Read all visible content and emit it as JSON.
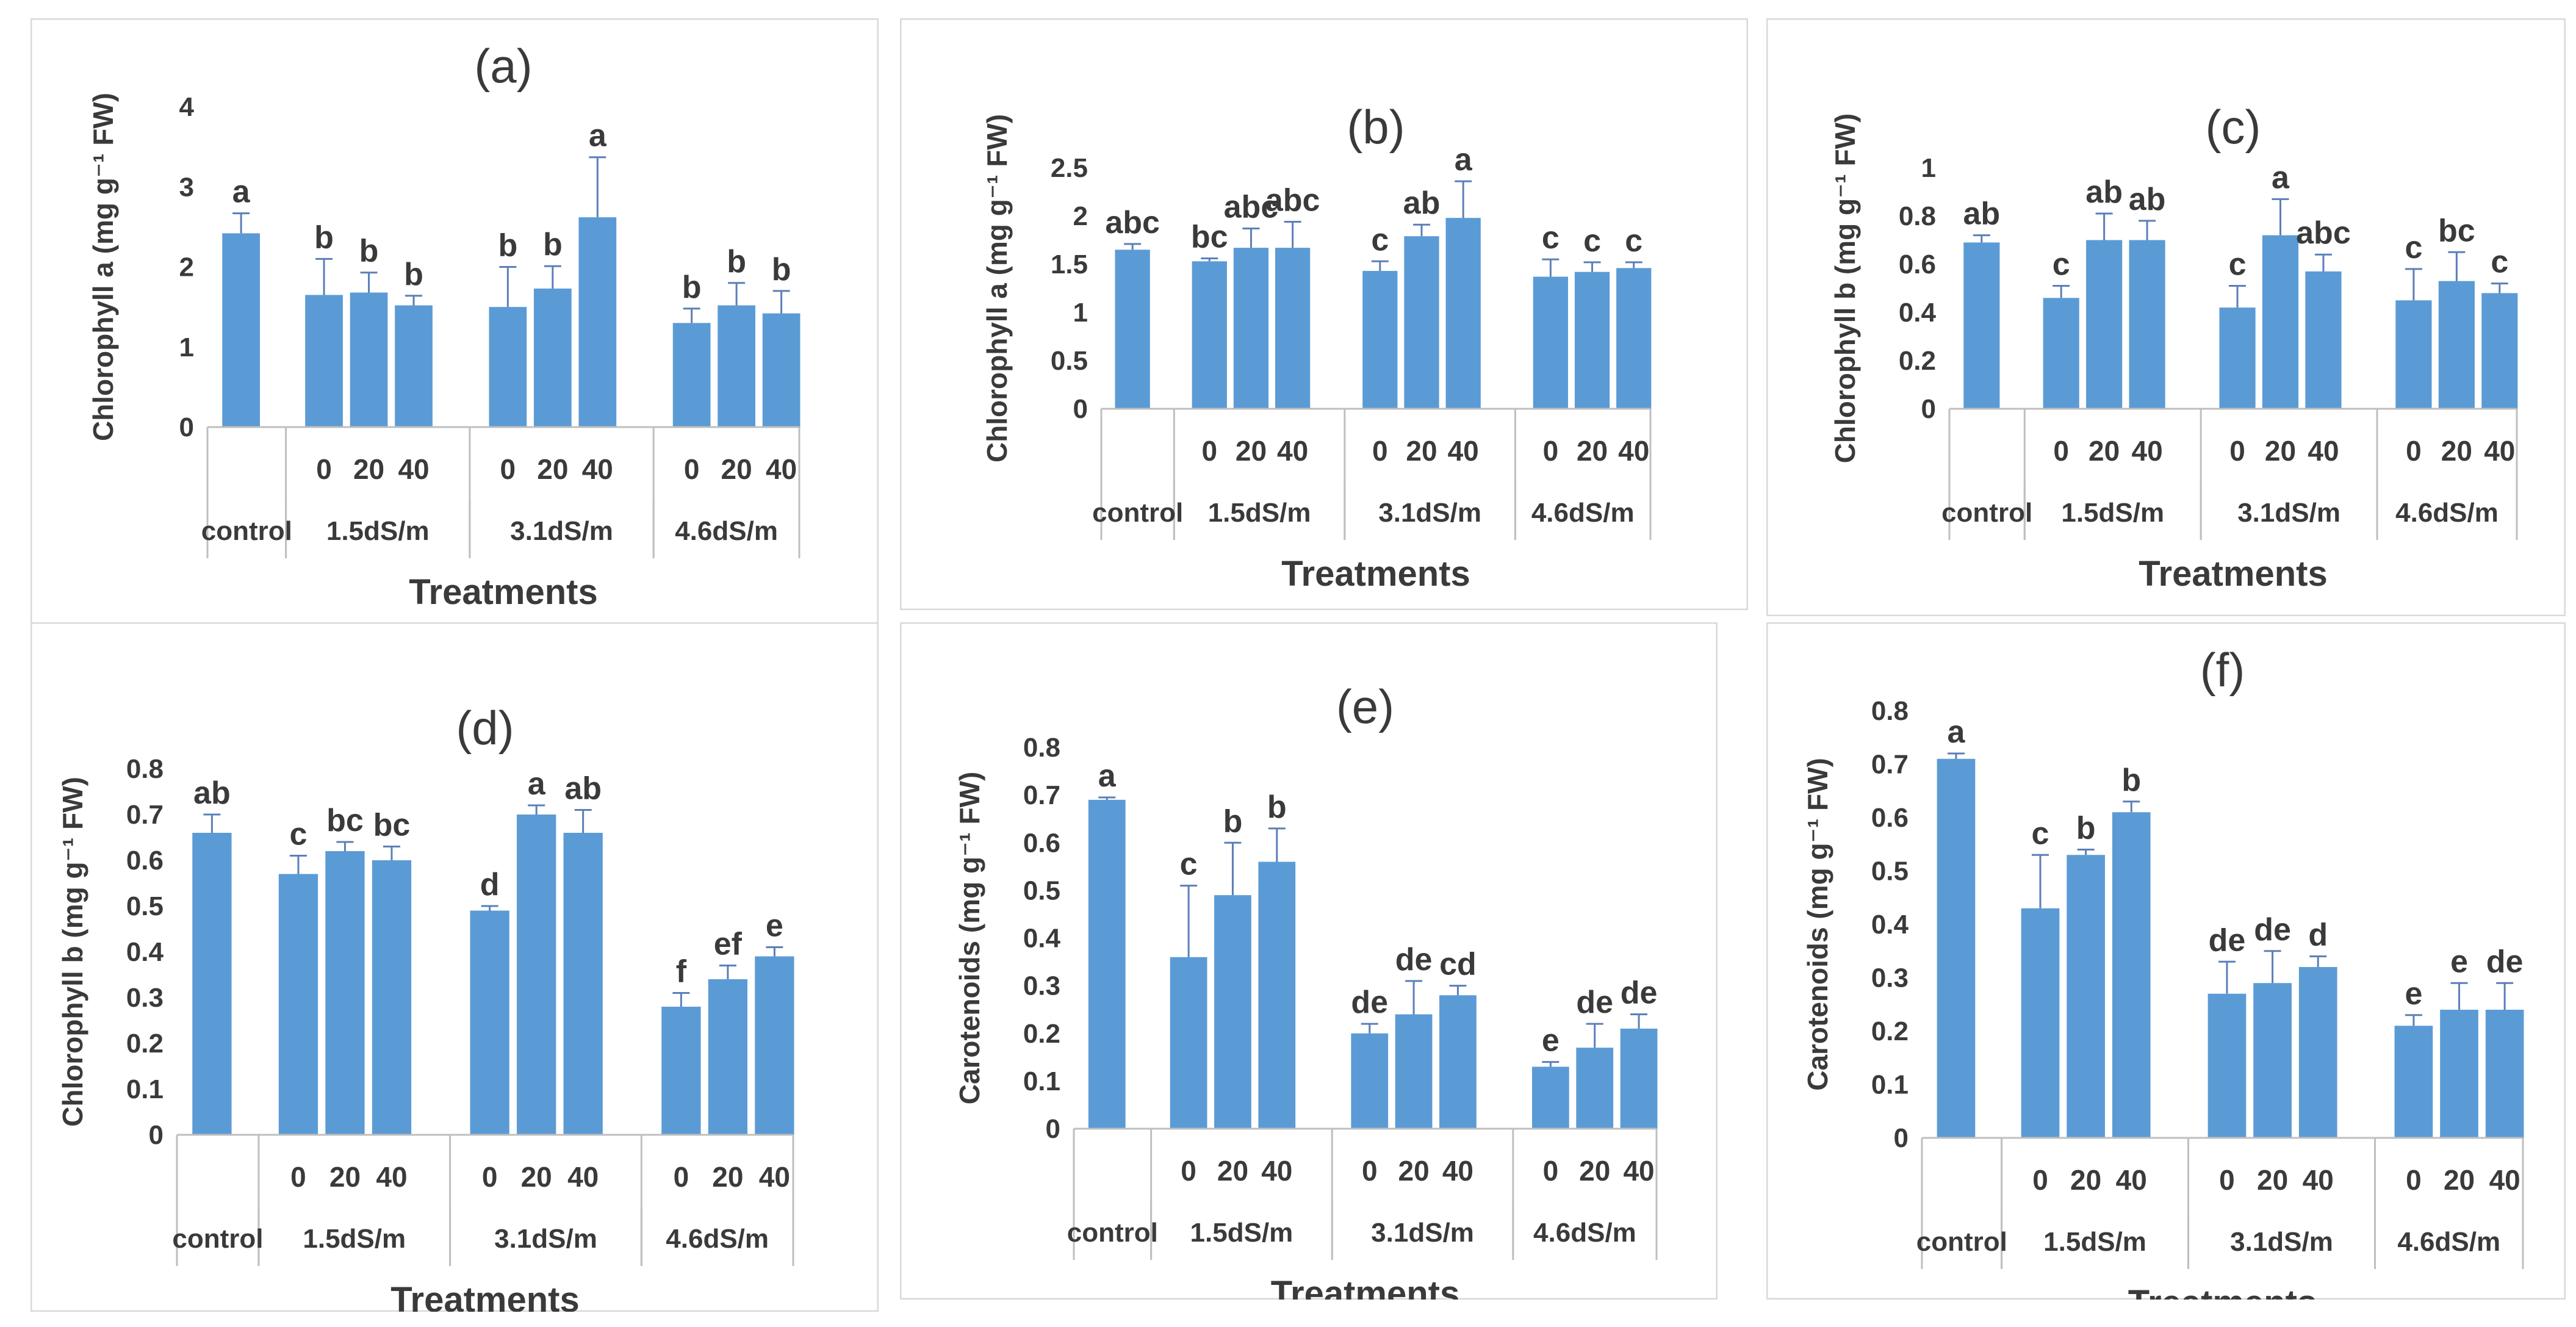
{
  "colors": {
    "bar": "#5b9bd5",
    "text": "#3a3a3a",
    "axis": "#bfbfbf",
    "frame": "#d9d9d9",
    "error": "#5b7fb8"
  },
  "xlabel": "Treatments",
  "group_labels": [
    "control",
    "1.5dS/m",
    "3.1dS/m",
    "4.6dS/m"
  ],
  "sub_labels": [
    "0",
    "20",
    "40"
  ],
  "chart_data": [
    {
      "type": "bar",
      "title": "(a)",
      "ylabel": "Chlorophyll a (mg g⁻¹ FW)",
      "ylim": [
        0,
        4
      ],
      "yticks": [
        0,
        1,
        2,
        3,
        4
      ],
      "xlabel": "Treatments",
      "categories": [
        "control",
        "1.5dS/m 0",
        "1.5dS/m 20",
        "1.5dS/m 40",
        "3.1dS/m 0",
        "3.1dS/m 20",
        "3.1dS/m 40",
        "4.6dS/m 0",
        "4.6dS/m 20",
        "4.6dS/m 40"
      ],
      "values": [
        2.42,
        1.65,
        1.68,
        1.52,
        1.5,
        1.73,
        2.62,
        1.3,
        1.52,
        1.42
      ],
      "errors": [
        0.25,
        0.45,
        0.25,
        0.12,
        0.5,
        0.28,
        0.75,
        0.18,
        0.28,
        0.28
      ],
      "letters": [
        "a",
        "b",
        "b",
        "b",
        "b",
        "b",
        "a",
        "b",
        "b",
        "b"
      ]
    },
    {
      "type": "bar",
      "title": "(b)",
      "ylabel": "Chlorophyll a (mg g⁻¹ FW)",
      "ylim": [
        0,
        2.5
      ],
      "yticks": [
        0,
        0.5,
        1,
        1.5,
        2,
        2.5
      ],
      "xlabel": "Treatments",
      "categories": [
        "control",
        "1.5dS/m 0",
        "1.5dS/m 20",
        "1.5dS/m 40",
        "3.1dS/m 0",
        "3.1dS/m 20",
        "3.1dS/m 40",
        "4.6dS/m 0",
        "4.6dS/m 20",
        "4.6dS/m 40"
      ],
      "values": [
        1.65,
        1.53,
        1.67,
        1.67,
        1.43,
        1.79,
        1.98,
        1.37,
        1.42,
        1.46
      ],
      "errors": [
        0.06,
        0.03,
        0.2,
        0.27,
        0.1,
        0.12,
        0.38,
        0.18,
        0.1,
        0.06
      ],
      "letters": [
        "abc",
        "bc",
        "abc",
        "abc",
        "c",
        "ab",
        "a",
        "c",
        "c",
        "c"
      ]
    },
    {
      "type": "bar",
      "title": "(c)",
      "ylabel": "Chlorophyll b (mg g⁻¹ FW)",
      "ylim": [
        0,
        1
      ],
      "yticks": [
        0,
        0.2,
        0.4,
        0.6,
        0.8,
        1
      ],
      "xlabel": "Treatments",
      "categories": [
        "control",
        "1.5dS/m 0",
        "1.5dS/m 20",
        "1.5dS/m 40",
        "3.1dS/m 0",
        "3.1dS/m 20",
        "3.1dS/m 40",
        "4.6dS/m 0",
        "4.6dS/m 20",
        "4.6dS/m 40"
      ],
      "values": [
        0.69,
        0.46,
        0.7,
        0.7,
        0.42,
        0.72,
        0.57,
        0.45,
        0.53,
        0.48
      ],
      "errors": [
        0.03,
        0.05,
        0.11,
        0.08,
        0.09,
        0.15,
        0.07,
        0.13,
        0.12,
        0.04
      ],
      "letters": [
        "ab",
        "c",
        "ab",
        "ab",
        "c",
        "a",
        "abc",
        "c",
        "bc",
        "c"
      ]
    },
    {
      "type": "bar",
      "title": "(d)",
      "ylabel": "Chlorophyll b (mg g⁻¹ FW)",
      "ylim": [
        0,
        0.8
      ],
      "yticks": [
        0,
        0.1,
        0.2,
        0.3,
        0.4,
        0.5,
        0.6,
        0.7,
        0.8
      ],
      "xlabel": "Treatments",
      "categories": [
        "control",
        "1.5dS/m 0",
        "1.5dS/m 20",
        "1.5dS/m 40",
        "3.1dS/m 0",
        "3.1dS/m 20",
        "3.1dS/m 40",
        "4.6dS/m 0",
        "4.6dS/m 20",
        "4.6dS/m 40"
      ],
      "values": [
        0.66,
        0.57,
        0.62,
        0.6,
        0.49,
        0.7,
        0.66,
        0.28,
        0.34,
        0.39
      ],
      "errors": [
        0.04,
        0.04,
        0.02,
        0.03,
        0.01,
        0.02,
        0.05,
        0.03,
        0.03,
        0.02
      ],
      "letters": [
        "ab",
        "c",
        "bc",
        "bc",
        "d",
        "a",
        "ab",
        "f",
        "ef",
        "e"
      ]
    },
    {
      "type": "bar",
      "title": "(e)",
      "ylabel": "Carotenoids (mg g⁻¹ FW)",
      "ylim": [
        0,
        0.8
      ],
      "yticks": [
        0,
        0.1,
        0.2,
        0.3,
        0.4,
        0.5,
        0.6,
        0.7,
        0.8
      ],
      "xlabel": "Treatments",
      "categories": [
        "control",
        "1.5dS/m 0",
        "1.5dS/m 20",
        "1.5dS/m 40",
        "3.1dS/m 0",
        "3.1dS/m 20",
        "3.1dS/m 40",
        "4.6dS/m 0",
        "4.6dS/m 20",
        "4.6dS/m 40"
      ],
      "values": [
        0.69,
        0.36,
        0.49,
        0.56,
        0.2,
        0.24,
        0.28,
        0.13,
        0.17,
        0.21
      ],
      "errors": [
        0.005,
        0.15,
        0.11,
        0.07,
        0.02,
        0.07,
        0.02,
        0.01,
        0.05,
        0.03
      ],
      "letters": [
        "a",
        "c",
        "b",
        "b",
        "de",
        "de",
        "cd",
        "e",
        "de",
        "de"
      ]
    },
    {
      "type": "bar",
      "title": "(f)",
      "ylabel": "Carotenoids (mg g⁻¹ FW)",
      "ylim": [
        0,
        0.8
      ],
      "yticks": [
        0,
        0.1,
        0.2,
        0.3,
        0.4,
        0.5,
        0.6,
        0.7,
        0.8
      ],
      "xlabel": "Treatments",
      "categories": [
        "control",
        "1.5dS/m 0",
        "1.5dS/m 20",
        "1.5dS/m 40",
        "3.1dS/m 0",
        "3.1dS/m 20",
        "3.1dS/m 40",
        "4.6dS/m 0",
        "4.6dS/m 20",
        "4.6dS/m 40"
      ],
      "values": [
        0.71,
        0.43,
        0.53,
        0.61,
        0.27,
        0.29,
        0.32,
        0.21,
        0.24,
        0.24
      ],
      "errors": [
        0.01,
        0.1,
        0.01,
        0.02,
        0.06,
        0.06,
        0.02,
        0.02,
        0.05,
        0.05
      ],
      "letters": [
        "a",
        "c",
        "b",
        "b",
        "de",
        "de",
        "d",
        "e",
        "e",
        "de"
      ]
    }
  ]
}
